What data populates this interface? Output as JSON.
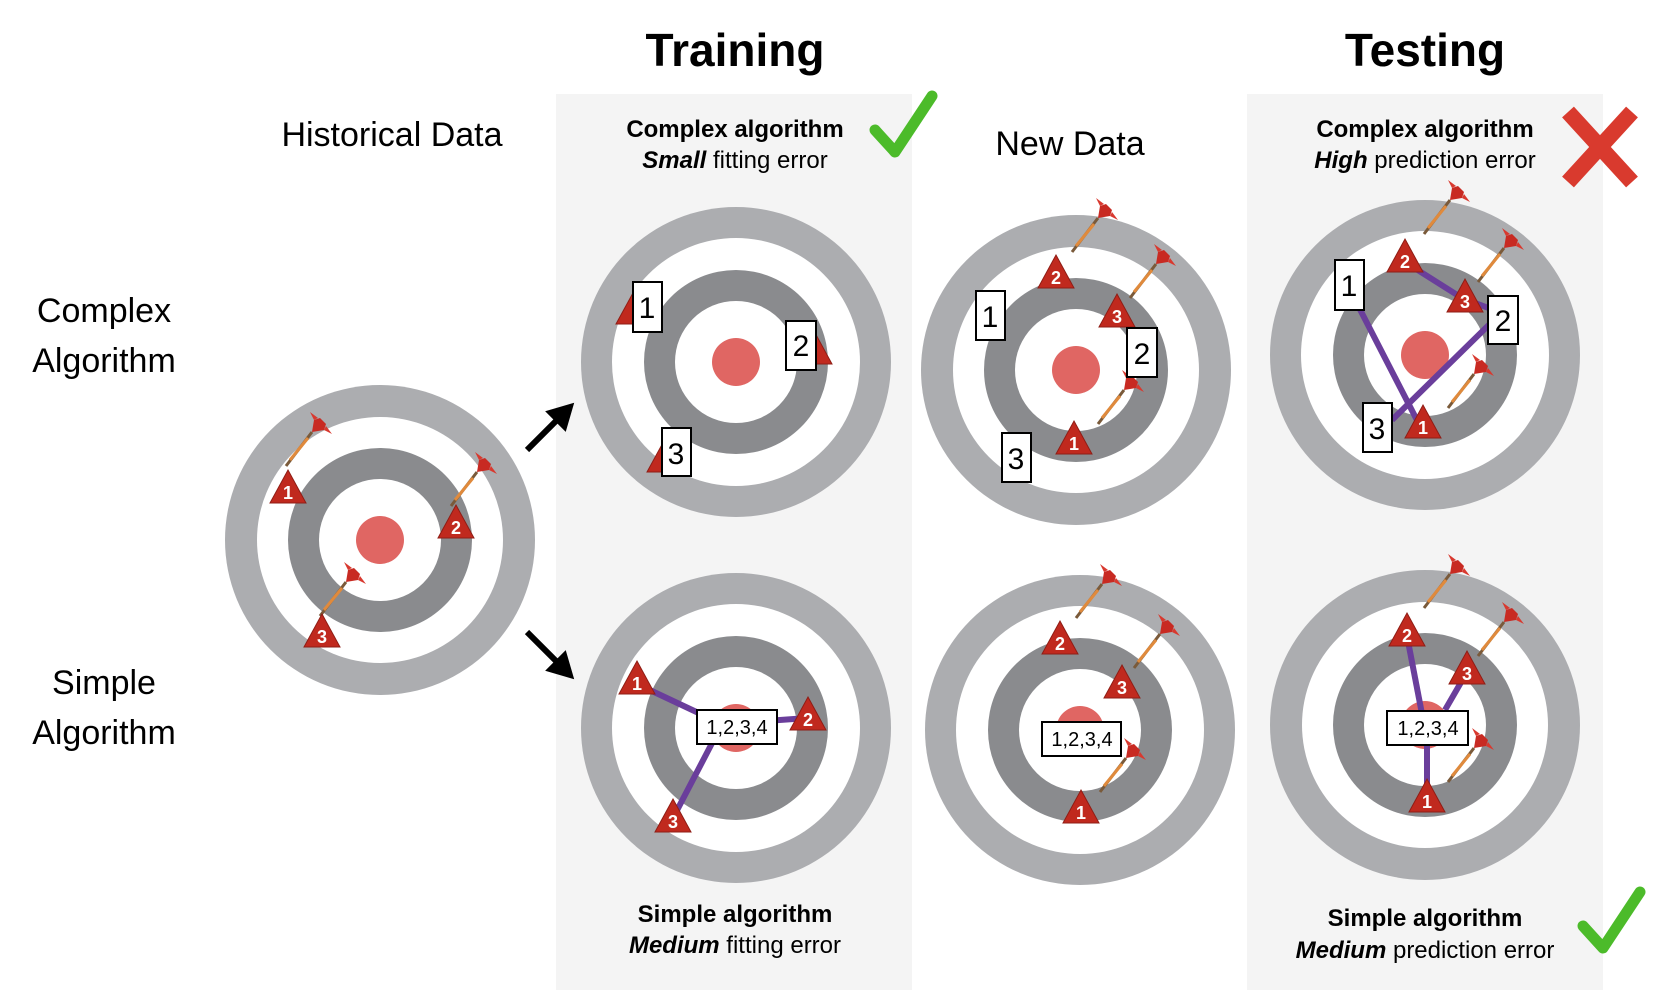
{
  "titles": {
    "training": "Training",
    "testing": "Testing"
  },
  "labels": {
    "historical": "Historical Data",
    "new_data": "New Data",
    "complex_row": [
      "Complex",
      "Algorithm"
    ],
    "simple_row": [
      "Simple",
      "Algorithm"
    ]
  },
  "captions": {
    "train_complex": {
      "line1": "Complex algorithm",
      "em": "Small",
      "rest": " fitting error"
    },
    "train_simple": {
      "line1": "Simple algorithm",
      "em": "Medium",
      "rest": " fitting error"
    },
    "test_complex": {
      "line1": "Complex algorithm",
      "em": "High",
      "rest": " prediction error"
    },
    "test_simple": {
      "line1": "Simple algorithm",
      "em": "Medium",
      "rest": " prediction error"
    }
  },
  "box_labels": {
    "one": "1",
    "two": "2",
    "three": "3",
    "combined": "1,2,3,4"
  },
  "dart_numbers": [
    "1",
    "2",
    "3"
  ],
  "marks": {
    "train_complex": "check",
    "test_complex": "cross",
    "test_simple": "check"
  },
  "colors": {
    "ring_outer": "#acadb0",
    "ring_inner": "#8a8b8e",
    "bullseye": "#e06663",
    "triangle": "#c0291e",
    "line": "#6a3e9b",
    "check": "#4cbb2a",
    "cross": "#d93a2e",
    "panel_bg": "#f4f4f4"
  }
}
